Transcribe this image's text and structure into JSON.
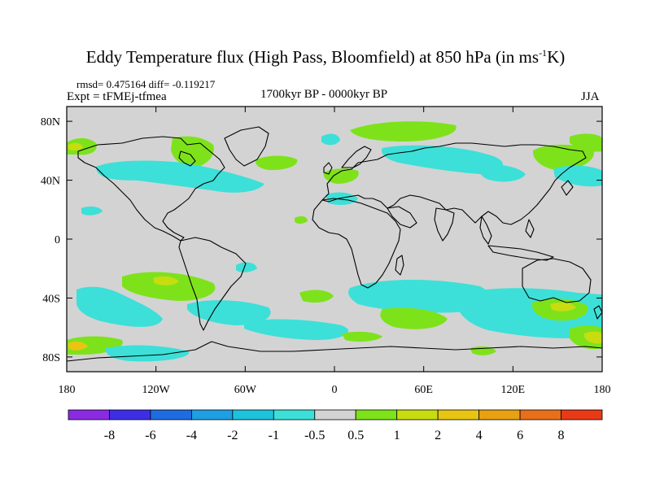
{
  "title": {
    "main": "Eddy Temperature flux (High Pass, Bloomfield) at 850 hPa (in ms",
    "sup": "-1",
    "end": "K)"
  },
  "stats": "rmsd= 0.475164 diff= -0.119217",
  "experiment": "Expt = tFMEj-tfmea",
  "period": "1700kyr BP - 0000kyr BP",
  "season": "JJA",
  "axes": {
    "x_ticks": [
      "180",
      "120W",
      "60W",
      "0",
      "60E",
      "120E",
      "180"
    ],
    "y_ticks": [
      "80N",
      "40N",
      "0",
      "40S",
      "80S"
    ]
  },
  "colorbar": {
    "colors": [
      "#8a2be2",
      "#3d2ee6",
      "#1f6be0",
      "#1e9fe3",
      "#1ec2dd",
      "#3ce0d8",
      "#d3d3d3",
      "#7ee21b",
      "#c7dd10",
      "#e8c512",
      "#e8a112",
      "#e8701a",
      "#e83a17"
    ],
    "labels": [
      "-8",
      "-6",
      "-4",
      "-2",
      "-1",
      "-0.5",
      "0.5",
      "1",
      "2",
      "4",
      "6",
      "8"
    ]
  },
  "map_colors": {
    "background": "#d3d3d3",
    "cyan": "#3ce0d8",
    "green": "#7ee21b",
    "yellow": "#c7dd10",
    "orange": "#e8c512"
  }
}
